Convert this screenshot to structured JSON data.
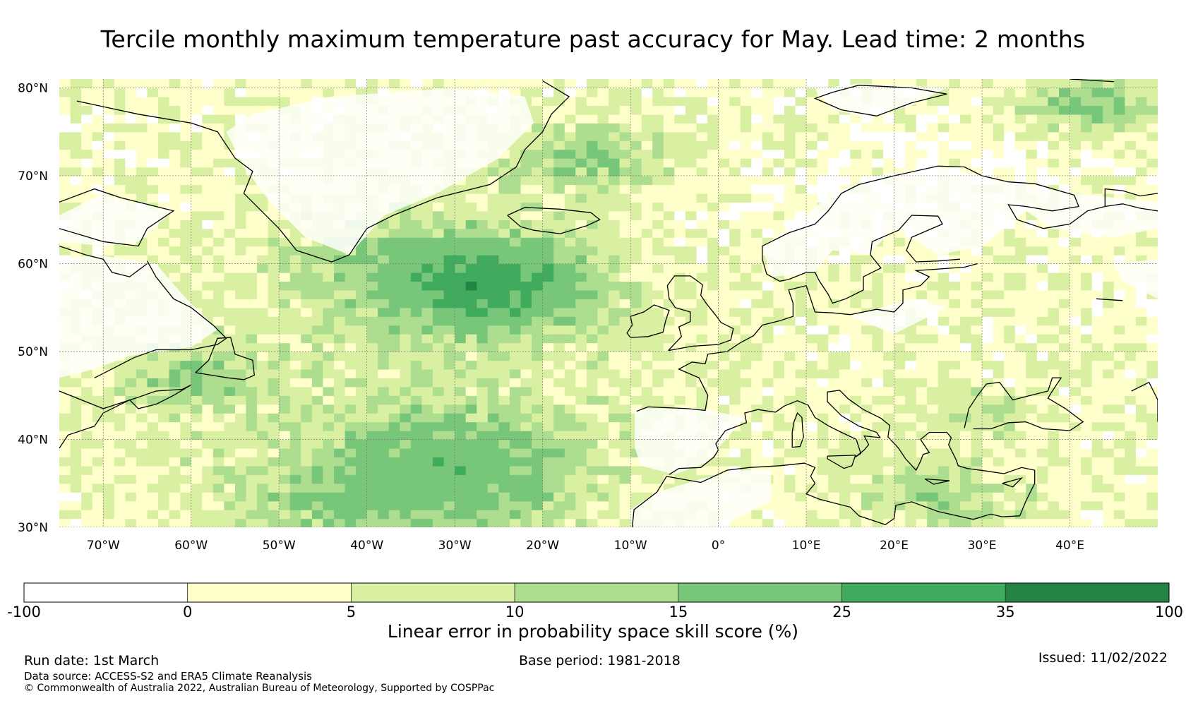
{
  "title": "Tercile monthly maximum temperature past accuracy for May. Lead time: 2 months",
  "map": {
    "lat_range": [
      30,
      81
    ],
    "lon_range": [
      -75,
      50
    ],
    "lat_ticks": [
      {
        "value": 30,
        "label": "30°N"
      },
      {
        "value": 40,
        "label": "40°N"
      },
      {
        "value": 50,
        "label": "50°N"
      },
      {
        "value": 60,
        "label": "60°N"
      },
      {
        "value": 70,
        "label": "70°N"
      },
      {
        "value": 80,
        "label": "80°N"
      }
    ],
    "lon_ticks": [
      {
        "value": -70,
        "label": "70°W"
      },
      {
        "value": -60,
        "label": "60°W"
      },
      {
        "value": -50,
        "label": "50°W"
      },
      {
        "value": -40,
        "label": "40°W"
      },
      {
        "value": -30,
        "label": "30°W"
      },
      {
        "value": -20,
        "label": "20°W"
      },
      {
        "value": -10,
        "label": "10°W"
      },
      {
        "value": 0,
        "label": "0°"
      },
      {
        "value": 10,
        "label": "10°E"
      },
      {
        "value": 20,
        "label": "20°E"
      },
      {
        "value": 30,
        "label": "30°E"
      },
      {
        "value": 40,
        "label": "40°E"
      }
    ],
    "grid": true
  },
  "colorbar": {
    "bounds": [
      "-100",
      "0",
      "5",
      "10",
      "15",
      "25",
      "35",
      "100"
    ],
    "colors": [
      "#ffffff",
      "#ffffcc",
      "#d9f0a3",
      "#addd8e",
      "#78c679",
      "#41ab5d",
      "#238443"
    ],
    "label": "Linear error in probability space skill score (%)"
  },
  "footer": {
    "run_date": "Run date: 1st March",
    "base_period": "Base period: 1981-2018",
    "issued": "Issued: 11/02/2022",
    "source": "Data source: ACCESS-S2 and ERA5 Climate Reanalysis",
    "copyright": "© Commonwealth of Australia 2022, Australian Bureau of Meteorology, Supported by COSPPac"
  }
}
